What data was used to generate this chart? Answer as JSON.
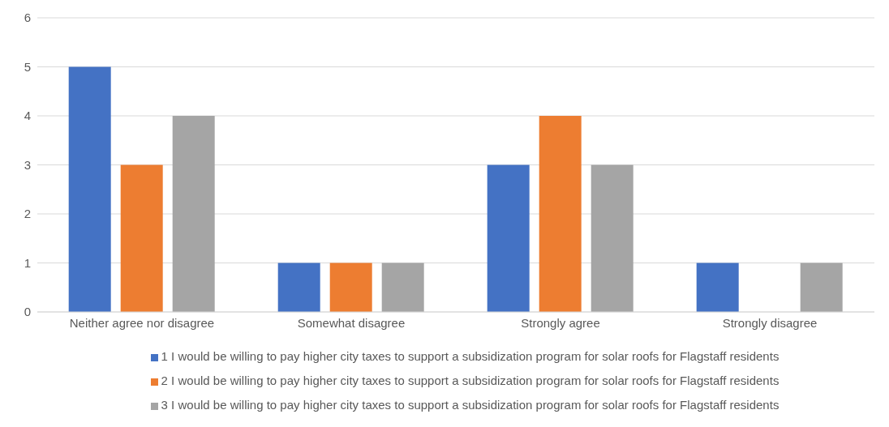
{
  "chart_data": {
    "type": "bar",
    "categories": [
      "Neither agree nor disagree",
      "Somewhat disagree",
      "Strongly agree",
      "Strongly disagree"
    ],
    "series": [
      {
        "name": "1 I would be willing to pay higher city taxes to support a subsidization program for solar roofs for Flagstaff residents",
        "color": "#4472c4",
        "values": [
          5,
          1,
          3,
          1
        ]
      },
      {
        "name": "2 I would be willing to pay higher city taxes to support a subsidization program for solar roofs for Flagstaff residents",
        "color": "#ed7d31",
        "values": [
          3,
          1,
          4,
          0
        ]
      },
      {
        "name": "3 I would be willing to pay higher city taxes to support a subsidization program for solar roofs for Flagstaff residents",
        "color": "#a5a5a5",
        "values": [
          4,
          1,
          3,
          1
        ]
      }
    ],
    "ylim": [
      0,
      6
    ],
    "yticks": [
      0,
      1,
      2,
      3,
      4,
      5,
      6
    ],
    "grid": "y",
    "legend": "bottom"
  }
}
